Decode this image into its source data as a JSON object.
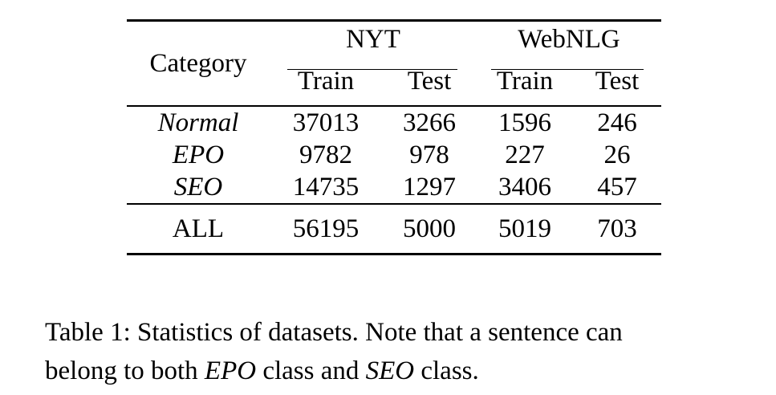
{
  "table": {
    "category_header": "Category",
    "groups": [
      {
        "name": "NYT",
        "subcols": [
          "Train",
          "Test"
        ]
      },
      {
        "name": "WebNLG",
        "subcols": [
          "Train",
          "Test"
        ]
      }
    ],
    "rows": [
      {
        "category": "Normal",
        "values": [
          "37013",
          "3266",
          "1596",
          "246"
        ]
      },
      {
        "category": "EPO",
        "values": [
          "9782",
          "978",
          "227",
          "26"
        ]
      },
      {
        "category": "SEO",
        "values": [
          "14735",
          "1297",
          "3406",
          "457"
        ]
      }
    ],
    "total": {
      "category": "ALL",
      "values": [
        "56195",
        "5000",
        "5019",
        "703"
      ]
    }
  },
  "caption": {
    "label": "Table 1:",
    "part1": " Statistics of datasets. Note that a sentence can",
    "part2": "belong to both ",
    "epo": "EPO",
    "part3": " class and ",
    "seo": "SEO",
    "part4": " class."
  }
}
